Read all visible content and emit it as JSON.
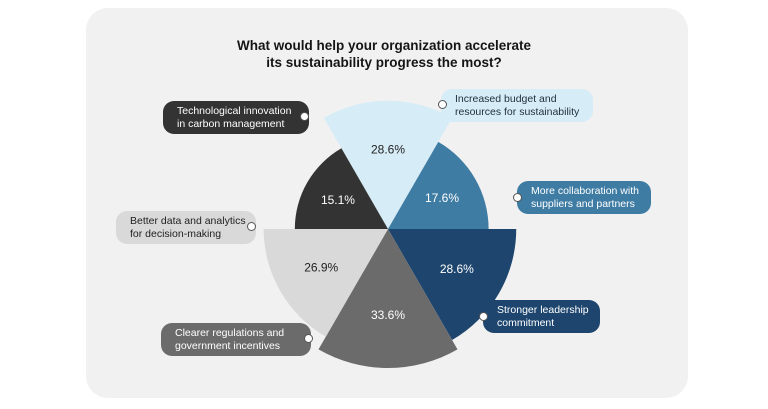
{
  "chart_data": {
    "type": "pie",
    "title_lines": [
      "What would help your organization accelerate",
      "its sustainability progress the most?"
    ],
    "slices": [
      {
        "label_lines": [
          "Increased budget and",
          "resources for sustainability"
        ],
        "value": 28.6,
        "value_label": "28.6%",
        "color": "#d6ecf7"
      },
      {
        "label_lines": [
          "More collaboration with",
          "suppliers and partners"
        ],
        "value": 17.6,
        "value_label": "17.6%",
        "color": "#3f7ca3"
      },
      {
        "label_lines": [
          "Stronger leadership",
          "commitment"
        ],
        "value": 28.6,
        "value_label": "28.6%",
        "color": "#1d456e"
      },
      {
        "label_lines": [
          "Clearer regulations and",
          "government incentives"
        ],
        "value": 33.6,
        "value_label": "33.6%",
        "color": "#6b6b6b"
      },
      {
        "label_lines": [
          "Better data and analytics",
          "for decision-making"
        ],
        "value": 26.9,
        "value_label": "26.9%",
        "color": "#d9d9d9"
      },
      {
        "label_lines": [
          "Technological innovation",
          "in carbon management"
        ],
        "value": 15.1,
        "value_label": "15.1%",
        "color": "#333333"
      }
    ]
  }
}
